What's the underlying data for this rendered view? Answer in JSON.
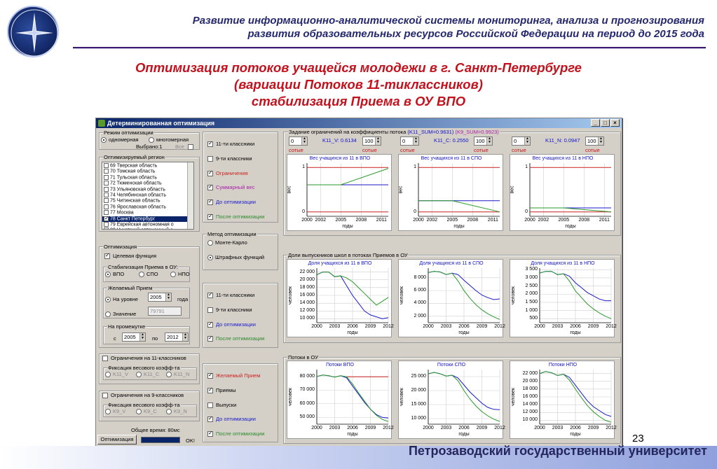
{
  "header": {
    "line1": "Развитие информационно-аналитической системы мониторинга, анализа и прогнозирования",
    "line2": "развития образовательных ресурсов Российской Федерации на период до 2015 года"
  },
  "title": {
    "line1": "Оптимизация потоков учащейся молодежи в г. Санкт-Петербурге",
    "line2": "(вариации Потоков 11-тиклассников)",
    "line3": "стабилизация Приема в ОУ ВПО"
  },
  "footer": {
    "university": "Петрозаводский государственный университет",
    "page": "23"
  },
  "colors": {
    "blue": "#1a1acc",
    "green": "#2a9a2a",
    "red": "#cc2222"
  },
  "window": {
    "title": "Детерминированная оптимизация",
    "buttons": [
      "_",
      "□",
      "×"
    ],
    "mode": {
      "label": "Режим оптимизации",
      "single": "одномерная",
      "multi": "многомерная",
      "selected_label": "Выбрано:1",
      "all_label": "Все"
    },
    "region": {
      "label": "Оптимизируемый регион",
      "items": [
        {
          "text": "69 Тверская область",
          "checked": false,
          "selected": false
        },
        {
          "text": "70 Томская область",
          "checked": false,
          "selected": false
        },
        {
          "text": "71 Тульская область",
          "checked": false,
          "selected": false
        },
        {
          "text": "72 Тюменская область",
          "checked": false,
          "selected": false
        },
        {
          "text": "73 Ульяновская область",
          "checked": false,
          "selected": false
        },
        {
          "text": "74 Челябинская область",
          "checked": false,
          "selected": false
        },
        {
          "text": "75 Читинская область",
          "checked": false,
          "selected": false
        },
        {
          "text": "76 Ярославская область",
          "checked": false,
          "selected": false
        },
        {
          "text": "77 Москва",
          "checked": false,
          "selected": false
        },
        {
          "text": "78 Санкт Петербург",
          "checked": true,
          "selected": true
        },
        {
          "text": "79 Еврейская автономная о",
          "checked": false,
          "selected": false
        },
        {
          "text": "80 Чукотский автономный о",
          "checked": false,
          "selected": false
        }
      ]
    },
    "optimization": {
      "label": "Оптимизация",
      "target": "Целевая функция",
      "stab_label": "Стабилизация Приема в ОУ:",
      "vpo": "ВПО",
      "spo": "СПО",
      "npo": "НПО",
      "desired_label": "Желаемый Прием",
      "at_level": "На уровне",
      "year_value": "2005",
      "year_word": "года",
      "value_label": "Значение",
      "value_field": "79791",
      "interval_label": "На промежутке",
      "from": "с",
      "from_value": "2005",
      "to": "по",
      "to_value": "2012"
    },
    "limits11": {
      "label": "Ограничения на 11-классников",
      "fix_label": "Фиксация весового коэфф-та",
      "opts": [
        "K11_V",
        "K11_C",
        "K11_N"
      ]
    },
    "limits9": {
      "label": "Ограничения на 9-классников",
      "fix_label": "Фиксация весового коэфф-та",
      "opts": [
        "K9_V",
        "K9_C",
        "K9_N"
      ]
    },
    "total_time": "Общее время:  80мс",
    "run_button": "Оптимизация",
    "status": "OK!",
    "checks_top": [
      {
        "label": "11-ти классники",
        "checked": true,
        "color": "#000000"
      },
      {
        "label": "9-ти классники",
        "checked": false,
        "color": "#000000"
      },
      {
        "label": "Ограничения",
        "checked": true,
        "color": "#cc2222"
      },
      {
        "label": "Суммарный вес",
        "checked": true,
        "color": "#aa22aa"
      },
      {
        "label": "До оптимизации",
        "checked": true,
        "color": "#1a1acc"
      },
      {
        "label": "После оптимизации",
        "checked": true,
        "color": "#2a8a2a"
      }
    ],
    "method": {
      "label": "Метод оптимизации",
      "monte": "Монте-Карло",
      "penalty": "Штрафных функций"
    },
    "checks_mid": [
      {
        "label": "11-ти классники",
        "checked": true,
        "color": "#000000"
      },
      {
        "label": "9-ти классники",
        "checked": false,
        "color": "#000000"
      },
      {
        "label": "До оптимизации",
        "checked": true,
        "color": "#1a1acc"
      },
      {
        "label": "После оптимизации",
        "checked": true,
        "color": "#2a8a2a"
      }
    ],
    "checks_bot": [
      {
        "label": "Желаемый Прием",
        "checked": true,
        "color": "#cc2222"
      },
      {
        "label": "Приемы",
        "checked": true,
        "color": "#000000"
      },
      {
        "label": "Выпуски",
        "checked": false,
        "color": "#000000"
      },
      {
        "label": "До оптимизации",
        "checked": true,
        "color": "#1a1acc"
      },
      {
        "label": "После оптимизации",
        "checked": true,
        "color": "#2a8a2a"
      }
    ],
    "constraints": {
      "label": "Задание ограничений на коэффициенты потока",
      "k11_sum": "(K11_SUM=0.9631)",
      "k9_sum": "(K9_SUM=0.9923)",
      "fields": [
        {
          "left": "0",
          "name": "K11_V:",
          "value": "0.6134",
          "right": "100",
          "unit": "сотые"
        },
        {
          "left": "0",
          "name": "K11_C:",
          "value": "0.2550",
          "right": "100",
          "unit": "сотые"
        },
        {
          "left": "0",
          "name": "K11_N:",
          "value": "0.0947",
          "right": "100",
          "unit": "сотые"
        }
      ]
    },
    "section2_label": "Доли выпускников школ в потоках Приемов в ОУ",
    "section3_label": "Потоки в ОУ",
    "xlabel": "годы",
    "xticks": [
      "2000",
      "2002",
      "2005",
      "2008",
      "2011"
    ],
    "xticks2": [
      "2000",
      "2003",
      "2006",
      "2009",
      "2012"
    ]
  },
  "chart_data": [
    {
      "type": "line",
      "title": "Вес учащихся из 11 в ВПО",
      "xlabel": "годы",
      "ylabel": "вес",
      "ylim": [
        -0.1,
        1.1
      ],
      "yticks": [
        "0",
        "1"
      ],
      "xticks": [
        "2000",
        "2002",
        "2005",
        "2008",
        "2011"
      ],
      "series": [
        {
          "color": "#cc2222",
          "x": [
            2000,
            2012
          ],
          "y": [
            1.0,
            1.0
          ]
        },
        {
          "color": "#cc2222",
          "x": [
            2000,
            2012
          ],
          "y": [
            0.0,
            0.0
          ]
        },
        {
          "color": "#1a1acc",
          "x": [
            2000,
            2012
          ],
          "y": [
            0.61,
            0.61
          ]
        },
        {
          "color": "#2a9a2a",
          "x": [
            2000,
            2005,
            2012
          ],
          "y": [
            0.61,
            0.61,
            0.98
          ]
        }
      ]
    },
    {
      "type": "line",
      "title": "Вес учащихся из 11 в СПО",
      "xlabel": "годы",
      "ylabel": "вес",
      "ylim": [
        -0.1,
        1.1
      ],
      "yticks": [
        "0",
        "1"
      ],
      "xticks": [
        "2000",
        "2002",
        "2005",
        "2008",
        "2011"
      ],
      "series": [
        {
          "color": "#cc2222",
          "x": [
            2000,
            2012
          ],
          "y": [
            1.0,
            1.0
          ]
        },
        {
          "color": "#cc2222",
          "x": [
            2000,
            2012
          ],
          "y": [
            0.0,
            0.0
          ]
        },
        {
          "color": "#1a1acc",
          "x": [
            2000,
            2012
          ],
          "y": [
            0.25,
            0.25
          ]
        },
        {
          "color": "#2a9a2a",
          "x": [
            2000,
            2005,
            2012
          ],
          "y": [
            0.25,
            0.25,
            0.0
          ]
        }
      ]
    },
    {
      "type": "line",
      "title": "Вес учащихся из 11 в НПО",
      "xlabel": "годы",
      "ylabel": "вес",
      "ylim": [
        -0.1,
        1.1
      ],
      "yticks": [
        "0",
        "1"
      ],
      "xticks": [
        "2000",
        "2002",
        "2005",
        "2008",
        "2011"
      ],
      "series": [
        {
          "color": "#cc2222",
          "x": [
            2000,
            2012
          ],
          "y": [
            1.0,
            1.0
          ]
        },
        {
          "color": "#cc2222",
          "x": [
            2000,
            2012
          ],
          "y": [
            0.0,
            0.0
          ]
        },
        {
          "color": "#1a1acc",
          "x": [
            2000,
            2012
          ],
          "y": [
            0.09,
            0.09
          ]
        },
        {
          "color": "#2a9a2a",
          "x": [
            2000,
            2005,
            2012
          ],
          "y": [
            0.09,
            0.09,
            0.0
          ]
        }
      ]
    },
    {
      "type": "line",
      "title": "Доля учащихся из 11 в ВПО",
      "xlabel": "годы",
      "ylabel": "человек",
      "ylim": [
        9000,
        23000
      ],
      "yticks": [
        "10 000",
        "12 000",
        "14 000",
        "16 000",
        "18 000",
        "20 000",
        "22 000"
      ],
      "xticks": [
        "2000",
        "2003",
        "2006",
        "2009",
        "2012"
      ],
      "series": [
        {
          "color": "#1a1acc",
          "x": [
            2000,
            2001,
            2002,
            2003,
            2004,
            2005,
            2006,
            2007,
            2008,
            2009,
            2010,
            2011,
            2012
          ],
          "y": [
            21300,
            22000,
            22000,
            20800,
            21000,
            18500,
            16000,
            14000,
            12000,
            11000,
            10500,
            10000,
            10300
          ]
        },
        {
          "color": "#2a9a2a",
          "x": [
            2000,
            2001,
            2002,
            2003,
            2004,
            2005,
            2006,
            2007,
            2008,
            2009,
            2010,
            2011,
            2012
          ],
          "y": [
            21300,
            22000,
            22000,
            20800,
            21000,
            20500,
            19500,
            18000,
            16500,
            15000,
            13500,
            14500,
            15500
          ]
        }
      ]
    },
    {
      "type": "line",
      "title": "Доля учащихся из 11 в СПО",
      "xlabel": "годы",
      "ylabel": "человек",
      "ylim": [
        1000,
        9500
      ],
      "yticks": [
        "2 000",
        "4 000",
        "6 000",
        "8 000"
      ],
      "xticks": [
        "2000",
        "2003",
        "2006",
        "2009",
        "2012"
      ],
      "series": [
        {
          "color": "#1a1acc",
          "x": [
            2000,
            2001,
            2002,
            2003,
            2004,
            2005,
            2006,
            2007,
            2008,
            2009,
            2010,
            2011,
            2012
          ],
          "y": [
            8800,
            9000,
            8900,
            8500,
            8700,
            8500,
            7600,
            6800,
            6000,
            5300,
            4900,
            4600,
            4700
          ]
        },
        {
          "color": "#2a9a2a",
          "x": [
            2000,
            2001,
            2002,
            2003,
            2004,
            2005,
            2006,
            2007,
            2008,
            2009,
            2010,
            2011,
            2012
          ],
          "y": [
            8800,
            9000,
            8900,
            8500,
            8700,
            7500,
            6000,
            4800,
            3800,
            3000,
            2400,
            1900,
            1500
          ]
        }
      ]
    },
    {
      "type": "line",
      "title": "Доля учащихся из 11 в НПО",
      "xlabel": "годы",
      "ylabel": "человек",
      "ylim": [
        250,
        3600
      ],
      "yticks": [
        "500",
        "1 000",
        "1 500",
        "2 000",
        "2 500",
        "3 000",
        "3 500"
      ],
      "xticks": [
        "2000",
        "2003",
        "2006",
        "2009",
        "2012"
      ],
      "series": [
        {
          "color": "#1a1acc",
          "x": [
            2000,
            2001,
            2002,
            2003,
            2004,
            2005,
            2006,
            2007,
            2008,
            2009,
            2010,
            2011,
            2012
          ],
          "y": [
            3300,
            3400,
            3400,
            3200,
            3250,
            3100,
            2700,
            2400,
            2100,
            1900,
            1700,
            1600,
            1600
          ]
        },
        {
          "color": "#2a9a2a",
          "x": [
            2000,
            2001,
            2002,
            2003,
            2004,
            2005,
            2006,
            2007,
            2008,
            2009,
            2010,
            2011,
            2012
          ],
          "y": [
            3300,
            3400,
            3400,
            3200,
            3250,
            2800,
            2200,
            1800,
            1400,
            1100,
            850,
            650,
            500
          ]
        }
      ]
    },
    {
      "type": "line",
      "title": "Потоки ВПО",
      "xlabel": "годы",
      "ylabel": "человек",
      "ylim": [
        45000,
        85000
      ],
      "yticks": [
        "50 000",
        "60 000",
        "70 000",
        "80 000"
      ],
      "xticks": [
        "2000",
        "2003",
        "2006",
        "2009",
        "2012"
      ],
      "series": [
        {
          "color": "#cc2222",
          "x": [
            2005,
            2012
          ],
          "y": [
            79791,
            79791
          ]
        },
        {
          "color": "#1a1acc",
          "x": [
            2000,
            2001,
            2002,
            2003,
            2004,
            2005,
            2006,
            2007,
            2008,
            2009,
            2010,
            2011,
            2012
          ],
          "y": [
            80000,
            81000,
            80500,
            79500,
            80500,
            79000,
            73000,
            67000,
            61000,
            56000,
            52000,
            50000,
            49500
          ]
        },
        {
          "color": "#2a9a2a",
          "x": [
            2000,
            2001,
            2002,
            2003,
            2004,
            2005,
            2006,
            2007,
            2008,
            2009,
            2010,
            2011,
            2012
          ],
          "y": [
            80000,
            81000,
            80500,
            79500,
            80500,
            79791,
            74500,
            68000,
            62000,
            56000,
            51500,
            48500,
            47000
          ]
        }
      ]
    },
    {
      "type": "line",
      "title": "Потоки СПО",
      "xlabel": "годы",
      "ylabel": "человек",
      "ylim": [
        8000,
        27500
      ],
      "yticks": [
        "10 000",
        "15 000",
        "20 000",
        "25 000"
      ],
      "xticks": [
        "2000",
        "2003",
        "2006",
        "2009",
        "2012"
      ],
      "series": [
        {
          "color": "#1a1acc",
          "x": [
            2000,
            2001,
            2002,
            2003,
            2004,
            2005,
            2006,
            2007,
            2008,
            2009,
            2010,
            2011,
            2012
          ],
          "y": [
            26000,
            26500,
            26000,
            25200,
            25500,
            24500,
            22000,
            19500,
            17500,
            15500,
            14000,
            13300,
            13200
          ]
        },
        {
          "color": "#2a9a2a",
          "x": [
            2000,
            2001,
            2002,
            2003,
            2004,
            2005,
            2006,
            2007,
            2008,
            2009,
            2010,
            2011,
            2012
          ],
          "y": [
            26000,
            26500,
            26000,
            25200,
            25500,
            23500,
            20000,
            17000,
            14500,
            12500,
            11000,
            9800,
            9000
          ]
        }
      ]
    },
    {
      "type": "line",
      "title": "Потоки НПО",
      "xlabel": "годы",
      "ylabel": "человек",
      "ylim": [
        9000,
        23000
      ],
      "yticks": [
        "10 000",
        "12 000",
        "14 000",
        "16 000",
        "18 000",
        "20 000",
        "22 000"
      ],
      "xticks": [
        "2000",
        "2003",
        "2006",
        "2009",
        "2012"
      ],
      "series": [
        {
          "color": "#1a1acc",
          "x": [
            2000,
            2001,
            2002,
            2003,
            2004,
            2005,
            2006,
            2007,
            2008,
            2009,
            2010,
            2011,
            2012
          ],
          "y": [
            22000,
            22500,
            22200,
            21500,
            21800,
            21000,
            19000,
            17000,
            15000,
            13500,
            12500,
            11500,
            11000
          ]
        },
        {
          "color": "#2a9a2a",
          "x": [
            2000,
            2001,
            2002,
            2003,
            2004,
            2005,
            2006,
            2007,
            2008,
            2009,
            2010,
            2011,
            2012
          ],
          "y": [
            22000,
            22500,
            22200,
            21500,
            21800,
            20300,
            18000,
            15800,
            13800,
            12200,
            11000,
            10000,
            9500
          ]
        }
      ]
    }
  ]
}
